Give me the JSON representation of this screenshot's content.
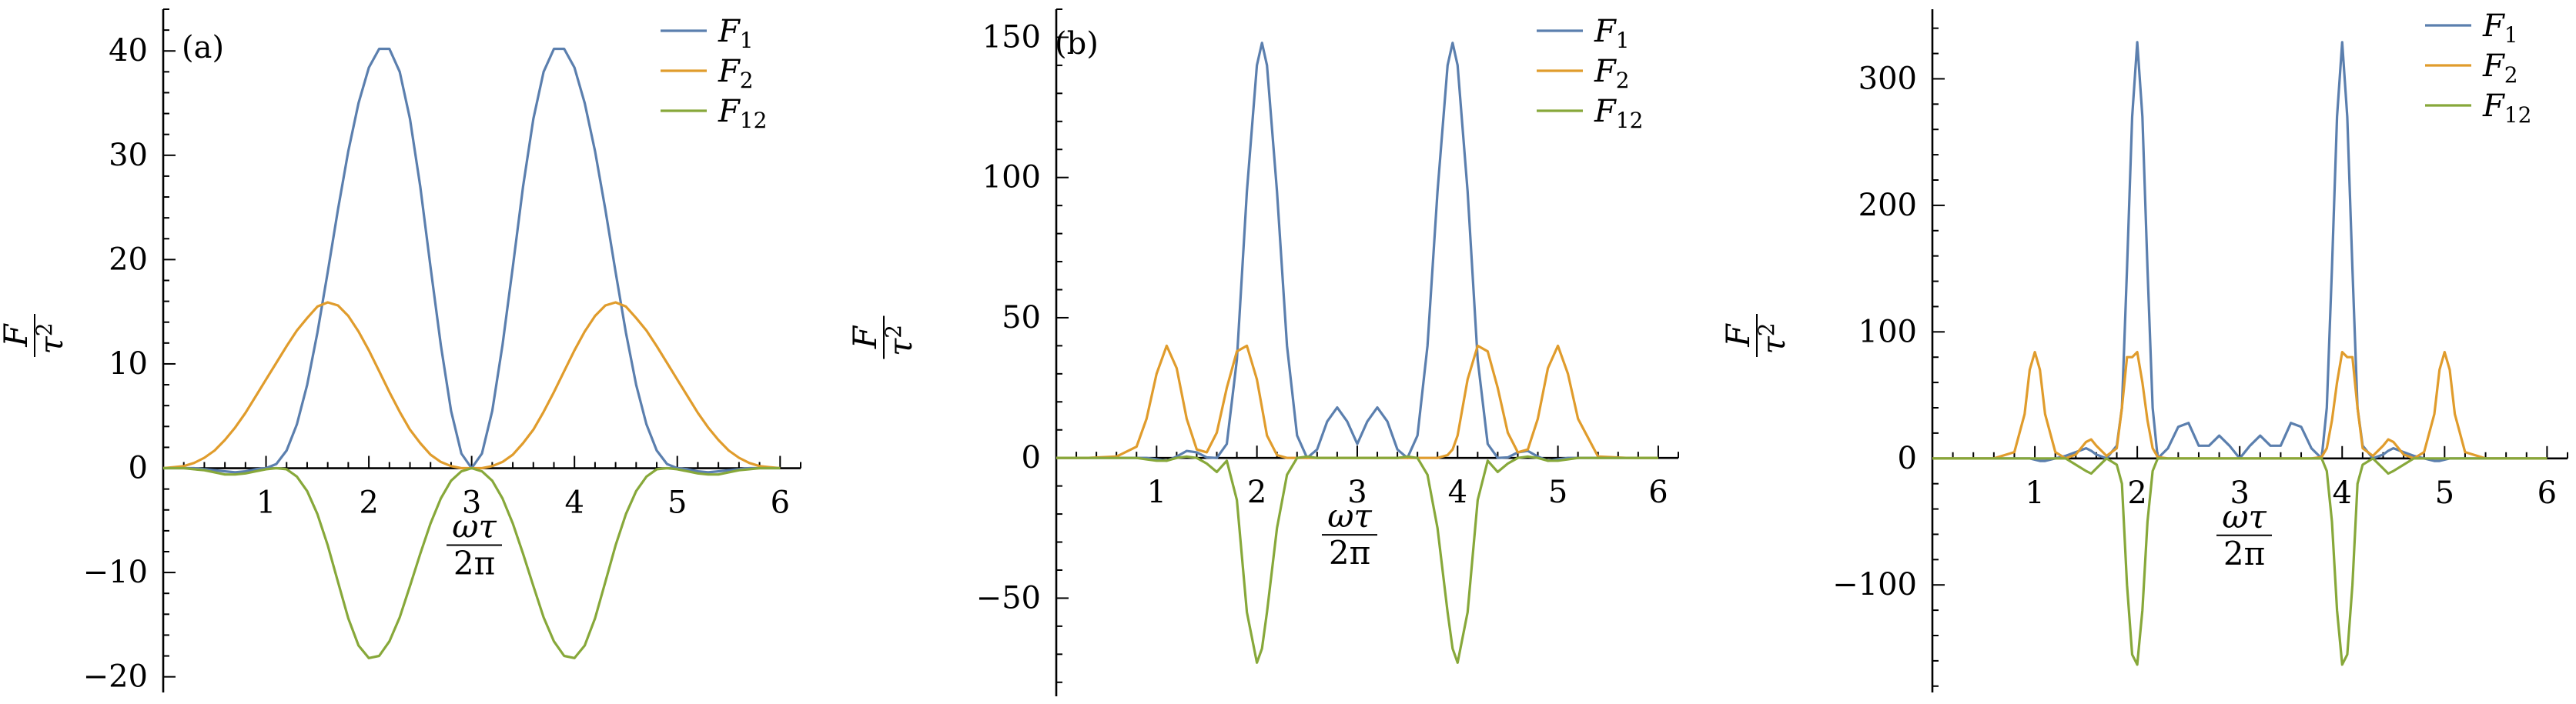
{
  "chart_data": [
    {
      "type": "line",
      "panel_label": "(a)",
      "x_ticks": [
        1,
        2,
        3,
        4,
        5,
        6
      ],
      "y_ticks": [
        -20,
        -10,
        0,
        10,
        20,
        30,
        40
      ],
      "xlim": [
        0,
        6.2
      ],
      "ylim": [
        -21.5,
        44
      ],
      "xlabel": {
        "num": "ωτ",
        "den": "2π"
      },
      "ylabel": {
        "num": "F",
        "den_base": "τ",
        "den_sup": "2"
      },
      "legend_position": "top-right",
      "x": [
        0.0,
        0.1,
        0.2,
        0.3,
        0.4,
        0.5,
        0.6,
        0.7,
        0.8,
        0.9,
        1.0,
        1.1,
        1.2,
        1.3,
        1.4,
        1.5,
        1.6,
        1.7,
        1.8,
        1.9,
        2.0,
        2.1,
        2.2,
        2.3,
        2.4,
        2.5,
        2.6,
        2.7,
        2.8,
        2.9,
        3.0,
        3.1,
        3.2,
        3.3,
        3.4,
        3.5,
        3.6,
        3.7,
        3.8,
        3.9,
        4.0,
        4.1,
        4.2,
        4.3,
        4.4,
        4.5,
        4.6,
        4.7,
        4.8,
        4.9,
        5.0,
        5.1,
        5.2,
        5.3,
        5.4,
        5.5,
        5.6,
        5.7,
        5.8,
        5.9,
        6.0
      ],
      "series": [
        {
          "name": "F",
          "sub": "1",
          "color": "#5b7fae",
          "values": [
            0,
            0,
            0,
            0,
            -0.1,
            -0.2,
            -0.3,
            -0.4,
            -0.3,
            -0.1,
            0,
            0.4,
            1.7,
            4.2,
            8.0,
            13.0,
            18.8,
            24.8,
            30.4,
            35.0,
            38.4,
            40.2,
            40.2,
            38.0,
            33.5,
            27.0,
            19.3,
            11.8,
            5.5,
            1.4,
            0,
            1.4,
            5.5,
            11.8,
            19.3,
            27.0,
            33.5,
            38.0,
            40.2,
            40.2,
            38.4,
            35.0,
            30.4,
            24.8,
            18.8,
            13.0,
            8.0,
            4.2,
            1.7,
            0.4,
            0,
            -0.1,
            -0.3,
            -0.4,
            -0.3,
            -0.2,
            -0.1,
            0,
            0,
            0,
            0
          ]
        },
        {
          "name": "F",
          "sub": "2",
          "color": "#e09c2c",
          "values": [
            0,
            0.1,
            0.2,
            0.5,
            1.0,
            1.7,
            2.7,
            3.9,
            5.3,
            6.9,
            8.5,
            10.1,
            11.7,
            13.2,
            14.4,
            15.5,
            15.9,
            15.6,
            14.6,
            13.1,
            11.3,
            9.3,
            7.3,
            5.4,
            3.7,
            2.4,
            1.3,
            0.6,
            0.2,
            0,
            0,
            0,
            0.2,
            0.6,
            1.3,
            2.4,
            3.7,
            5.4,
            7.3,
            9.3,
            11.3,
            13.1,
            14.6,
            15.6,
            15.9,
            15.5,
            14.4,
            13.2,
            11.7,
            10.1,
            8.5,
            6.9,
            5.3,
            3.9,
            2.7,
            1.7,
            1.0,
            0.5,
            0.2,
            0.1,
            0
          ]
        },
        {
          "name": "F",
          "sub": "12",
          "color": "#87a83a",
          "values": [
            0,
            0,
            0,
            -0.1,
            -0.2,
            -0.4,
            -0.6,
            -0.6,
            -0.5,
            -0.3,
            -0.1,
            0,
            -0.1,
            -0.8,
            -2.2,
            -4.4,
            -7.4,
            -10.9,
            -14.4,
            -17.0,
            -18.2,
            -18.0,
            -16.6,
            -14.3,
            -11.3,
            -8.2,
            -5.3,
            -2.9,
            -1.2,
            -0.3,
            0,
            -0.3,
            -1.2,
            -2.9,
            -5.3,
            -8.2,
            -11.3,
            -14.3,
            -16.6,
            -18.0,
            -18.2,
            -17.0,
            -14.4,
            -10.9,
            -7.4,
            -4.4,
            -2.2,
            -0.8,
            -0.1,
            0,
            -0.1,
            -0.3,
            -0.5,
            -0.6,
            -0.6,
            -0.4,
            -0.2,
            -0.1,
            0,
            0,
            0
          ]
        }
      ]
    },
    {
      "type": "line",
      "panel_label": "(b)",
      "x_ticks": [
        1,
        2,
        3,
        4,
        5,
        6
      ],
      "y_ticks": [
        -50,
        0,
        50,
        100,
        150
      ],
      "xlim": [
        0,
        6.2
      ],
      "ylim": [
        -85,
        160
      ],
      "xlabel": {
        "num": "ωτ",
        "den": "2π"
      },
      "ylabel": {
        "num": "F",
        "den_base": "τ",
        "den_sup": "2"
      },
      "legend_position": "top-right",
      "x": [
        0.0,
        0.3,
        0.6,
        0.8,
        0.9,
        1.0,
        1.1,
        1.2,
        1.3,
        1.4,
        1.5,
        1.6,
        1.7,
        1.8,
        1.9,
        2.0,
        2.05,
        2.1,
        2.2,
        2.3,
        2.4,
        2.5,
        2.6,
        2.7,
        2.8,
        2.9,
        3.0,
        3.1,
        3.2,
        3.3,
        3.4,
        3.5,
        3.6,
        3.7,
        3.8,
        3.9,
        3.95,
        4.0,
        4.1,
        4.2,
        4.3,
        4.4,
        4.5,
        4.6,
        4.7,
        4.8,
        4.9,
        5.0,
        5.1,
        5.2,
        5.4,
        5.7,
        6.0
      ],
      "series": [
        {
          "name": "F",
          "sub": "1",
          "color": "#5b7fae",
          "values": [
            0,
            0,
            0,
            0,
            0,
            -0.5,
            -1.0,
            0.5,
            2.5,
            2.0,
            0.2,
            0,
            5,
            35,
            95,
            140,
            148,
            140,
            95,
            40,
            8,
            0,
            3,
            13,
            18,
            13,
            5,
            13,
            18,
            13,
            3,
            0,
            8,
            40,
            95,
            140,
            148,
            140,
            95,
            35,
            5,
            0,
            0.2,
            2.0,
            2.5,
            0.5,
            -1.0,
            -0.5,
            0,
            0,
            0,
            0,
            0
          ]
        },
        {
          "name": "F",
          "sub": "2",
          "color": "#e09c2c",
          "values": [
            0,
            0,
            0.5,
            4,
            14,
            30,
            40,
            32,
            14,
            3,
            2,
            9,
            25,
            38,
            40,
            28,
            18,
            8,
            1,
            0,
            0,
            0,
            0,
            0,
            0,
            0,
            0,
            0,
            0,
            0,
            0,
            0,
            0,
            0,
            0,
            1,
            3,
            8,
            28,
            40,
            38,
            25,
            9,
            2,
            3,
            14,
            32,
            40,
            30,
            14,
            0.5,
            0,
            0
          ]
        },
        {
          "name": "F",
          "sub": "12",
          "color": "#87a83a",
          "values": [
            0,
            0,
            0,
            0,
            -0.5,
            -1.0,
            -1.0,
            0,
            0.5,
            0,
            -2,
            -5,
            -1,
            -15,
            -55,
            -73,
            -68,
            -55,
            -25,
            -6,
            0,
            0.5,
            0,
            0,
            0,
            0,
            0,
            0,
            0,
            0,
            0,
            0.5,
            0,
            -6,
            -25,
            -55,
            -68,
            -73,
            -55,
            -15,
            -1,
            -5,
            -2,
            0,
            0.5,
            0,
            -1.0,
            -1.0,
            -0.5,
            0,
            0,
            0,
            0
          ]
        }
      ]
    },
    {
      "type": "line",
      "panel_label": "",
      "x_ticks": [
        1,
        2,
        3,
        4,
        5,
        6
      ],
      "y_ticks": [
        -100,
        0,
        100,
        200,
        300
      ],
      "xlim": [
        0,
        6.2
      ],
      "ylim": [
        -185,
        355
      ],
      "xlabel": {
        "num": "ωτ",
        "den": "2π"
      },
      "ylabel": {
        "num": "F",
        "den_base": "τ",
        "den_sup": "2"
      },
      "legend_position": "top-right",
      "x": [
        0.0,
        0.6,
        0.8,
        0.9,
        0.95,
        1.0,
        1.05,
        1.1,
        1.2,
        1.3,
        1.4,
        1.5,
        1.55,
        1.6,
        1.7,
        1.8,
        1.85,
        1.9,
        1.95,
        2.0,
        2.05,
        2.1,
        2.15,
        2.2,
        2.3,
        2.4,
        2.5,
        2.6,
        2.7,
        2.8,
        2.9,
        3.0,
        3.1,
        3.2,
        3.3,
        3.4,
        3.5,
        3.6,
        3.7,
        3.8,
        3.85,
        3.9,
        3.95,
        4.0,
        4.05,
        4.1,
        4.15,
        4.2,
        4.3,
        4.4,
        4.45,
        4.5,
        4.6,
        4.7,
        4.8,
        4.9,
        4.95,
        5.0,
        5.05,
        5.1,
        5.2,
        5.4,
        6.0
      ],
      "series": [
        {
          "name": "F",
          "sub": "1",
          "color": "#5b7fae",
          "values": [
            0,
            0,
            0,
            0,
            0,
            -1,
            -2,
            -2,
            0,
            2,
            5,
            8,
            6,
            3,
            0,
            10,
            40,
            150,
            270,
            329,
            270,
            150,
            40,
            0,
            8,
            25,
            28,
            10,
            10,
            18,
            10,
            0,
            10,
            18,
            10,
            10,
            28,
            25,
            8,
            0,
            40,
            150,
            270,
            329,
            270,
            150,
            40,
            10,
            0,
            3,
            6,
            8,
            5,
            2,
            0,
            -2,
            -2,
            -1,
            0,
            0,
            0,
            0,
            0
          ]
        },
        {
          "name": "F",
          "sub": "2",
          "color": "#e09c2c",
          "values": [
            0,
            0,
            5,
            35,
            70,
            84,
            70,
            35,
            5,
            0,
            3,
            13,
            15,
            10,
            2,
            8,
            40,
            80,
            80,
            84,
            60,
            30,
            8,
            1,
            0,
            0,
            0,
            0,
            0,
            0,
            0,
            0,
            0,
            0,
            0,
            0,
            0,
            0,
            0,
            1,
            8,
            30,
            60,
            84,
            80,
            80,
            40,
            8,
            2,
            10,
            15,
            13,
            3,
            0,
            5,
            35,
            70,
            84,
            70,
            35,
            5,
            0,
            0
          ]
        },
        {
          "name": "F",
          "sub": "12",
          "color": "#87a83a",
          "values": [
            0,
            0,
            0,
            0,
            0,
            0,
            0,
            0,
            0,
            0,
            -5,
            -10,
            -12,
            -8,
            0,
            -5,
            -20,
            -100,
            -155,
            -163,
            -120,
            -50,
            -10,
            0,
            0,
            0,
            0,
            0,
            0,
            0,
            0,
            0,
            0,
            0,
            0,
            0,
            0,
            0,
            0,
            0,
            -10,
            -50,
            -120,
            -163,
            -155,
            -100,
            -20,
            -5,
            0,
            -8,
            -12,
            -10,
            -5,
            0,
            0,
            0,
            0,
            0,
            0,
            0,
            0,
            0,
            0
          ]
        }
      ]
    }
  ]
}
